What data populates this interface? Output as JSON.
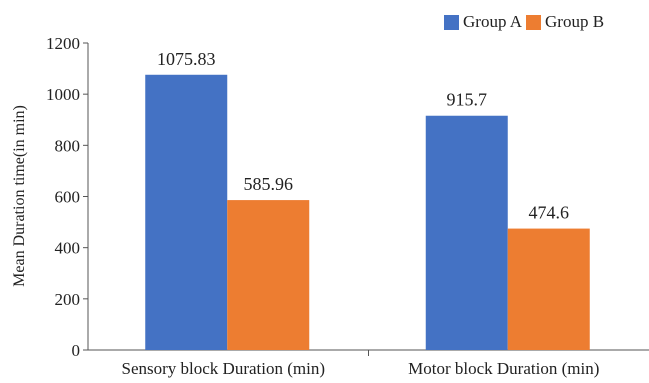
{
  "chart_data": {
    "type": "bar",
    "title": "",
    "xlabel": "",
    "ylabel": "Mean  Duration time(in min)",
    "ylim": [
      0,
      1200
    ],
    "yticks": [
      0,
      200,
      400,
      600,
      800,
      1000,
      1200
    ],
    "grid": false,
    "legend_position": "top-right",
    "categories": [
      "Sensory block  Duration (min)",
      "Motor block Duration (min)"
    ],
    "series": [
      {
        "name": "Group A",
        "color": "#4472C4",
        "values": [
          1075.83,
          915.7
        ],
        "labels": [
          "1075.83",
          "915.7"
        ]
      },
      {
        "name": "Group B",
        "color": "#ED7D31",
        "values": [
          585.96,
          474.6
        ],
        "labels": [
          "585.96",
          "474.6"
        ]
      }
    ]
  }
}
